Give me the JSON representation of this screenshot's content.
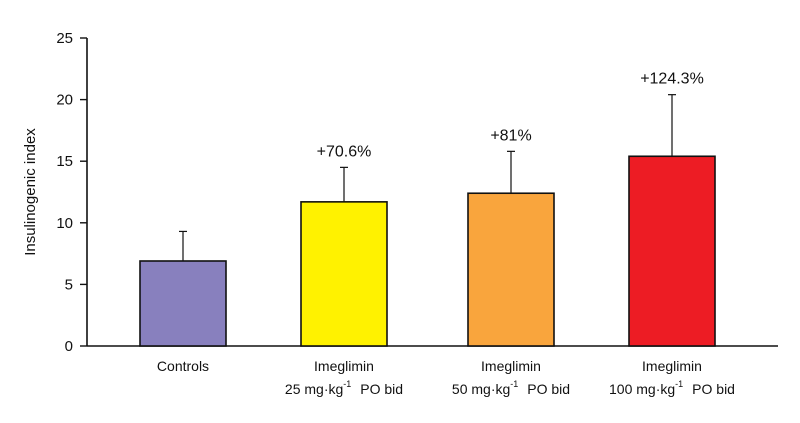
{
  "chart_data": {
    "type": "bar",
    "title": "",
    "xlabel": "",
    "ylabel": "Insulinogenic index",
    "ylim": [
      0,
      25
    ],
    "yticks": [
      "0",
      "5",
      "10",
      "15",
      "20",
      "25"
    ],
    "grid": false,
    "legend": "none",
    "categories": [
      {
        "name": "Controls",
        "dose": "",
        "exponent": "",
        "route": ""
      },
      {
        "name": "Imeglimin",
        "dose": "25 mg·kg",
        "exponent": "-1",
        "route": "PO bid"
      },
      {
        "name": "Imeglimin",
        "dose": "50 mg·kg",
        "exponent": "-1",
        "route": "PO bid"
      },
      {
        "name": "Imeglimin",
        "dose": "100 mg·kg",
        "exponent": "-1",
        "route": "PO bid"
      }
    ],
    "values": [
      6.9,
      11.7,
      12.4,
      15.4
    ],
    "error_upper": [
      9.3,
      14.5,
      15.8,
      20.4
    ],
    "annotations": [
      "",
      "+70.6%",
      "+81%",
      "+124.3%"
    ],
    "colors": [
      "#8880be",
      "#fff200",
      "#f9a53d",
      "#ed1c24"
    ],
    "stroke": "#111111"
  }
}
